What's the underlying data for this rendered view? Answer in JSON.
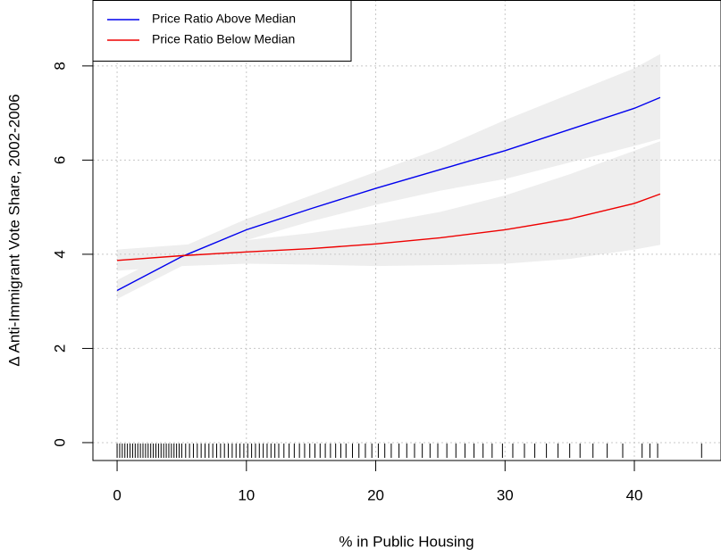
{
  "chart_data": {
    "type": "line",
    "x_label": "% in Public Housing",
    "y_label": "Δ Anti-Immigrant Vote Share, 2002-2006",
    "x": [
      0,
      5,
      10,
      15,
      20,
      25,
      30,
      35,
      40,
      42
    ],
    "series": [
      {
        "name": "Price Ratio Above Median",
        "color": "#0000ee",
        "values": [
          3.23,
          3.95,
          4.52,
          4.97,
          5.4,
          5.8,
          6.2,
          6.65,
          7.1,
          7.33
        ],
        "lower": [
          3.05,
          3.75,
          4.3,
          4.7,
          5.05,
          5.35,
          5.6,
          5.95,
          6.3,
          6.45
        ],
        "upper": [
          3.45,
          4.15,
          4.75,
          5.25,
          5.75,
          6.25,
          6.85,
          7.4,
          7.95,
          8.25
        ]
      },
      {
        "name": "Price Ratio Below Median",
        "color": "#ee0000",
        "values": [
          3.87,
          3.97,
          4.05,
          4.12,
          4.22,
          4.35,
          4.52,
          4.75,
          5.08,
          5.28
        ],
        "lower": [
          3.65,
          3.75,
          3.8,
          3.78,
          3.75,
          3.77,
          3.8,
          3.9,
          4.1,
          4.2
        ],
        "upper": [
          4.1,
          4.2,
          4.3,
          4.45,
          4.65,
          4.9,
          5.25,
          5.7,
          6.2,
          6.4
        ]
      }
    ],
    "band_color": "#eeeeee",
    "rug": [
      0,
      0.2,
      0.4,
      0.6,
      0.8,
      1,
      1.2,
      1.4,
      1.6,
      1.8,
      2,
      2.2,
      2.4,
      2.6,
      2.8,
      3,
      3.2,
      3.4,
      3.6,
      3.8,
      4,
      4.2,
      4.4,
      4.6,
      4.8,
      5,
      5.3,
      5.6,
      5.9,
      6.2,
      6.5,
      6.8,
      7.1,
      7.4,
      7.7,
      8,
      8.3,
      8.6,
      8.9,
      9.2,
      9.5,
      9.8,
      10.1,
      10.4,
      10.7,
      11,
      11.3,
      11.6,
      11.9,
      12.2,
      12.5,
      12.9,
      13.3,
      13.7,
      14.1,
      14.5,
      14.9,
      15.3,
      15.7,
      16.1,
      16.5,
      16.9,
      17.3,
      17.7,
      18.2,
      18.7,
      19.2,
      19.7,
      20.2,
      20.7,
      21.2,
      21.8,
      22.4,
      23,
      23.6,
      24.2,
      24.8,
      25.5,
      26.2,
      26.9,
      27.6,
      28.3,
      29,
      29.8,
      30.6,
      31.5,
      32.3,
      33.2,
      34.1,
      35,
      35.8,
      36.8,
      37.9,
      39.1,
      40.6,
      41.2,
      41.8,
      45.2
    ],
    "xlim": [
      -1.87,
      46.7
    ],
    "ylim": [
      -0.38,
      9.4
    ],
    "xticks": [
      0,
      10,
      20,
      30,
      40
    ],
    "yticks": [
      0,
      2,
      4,
      6,
      8
    ],
    "grid": true,
    "legend": "top-left"
  }
}
